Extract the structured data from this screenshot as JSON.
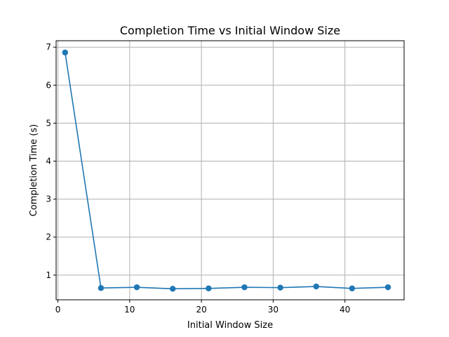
{
  "chart_data": {
    "type": "line",
    "title": "Completion Time vs Initial Window Size",
    "xlabel": "Initial Window Size",
    "ylabel": "Completion Time (s)",
    "xlim": [
      -0.25,
      48.25
    ],
    "ylim": [
      0.35,
      7.17
    ],
    "xticks": [
      0,
      10,
      20,
      30,
      40
    ],
    "yticks": [
      1,
      2,
      3,
      4,
      5,
      6,
      7
    ],
    "grid": true,
    "marker": "circle",
    "color": "#1f77b4",
    "series": [
      {
        "x": [
          1,
          6,
          11,
          16,
          21,
          26,
          31,
          36,
          41,
          46
        ],
        "values": [
          6.86,
          0.66,
          0.68,
          0.64,
          0.65,
          0.68,
          0.67,
          0.7,
          0.65,
          0.68
        ]
      }
    ]
  }
}
